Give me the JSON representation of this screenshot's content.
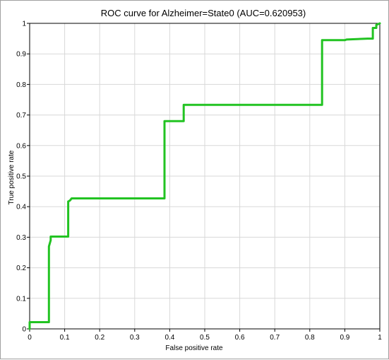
{
  "chart_data": {
    "type": "line",
    "title": "ROC curve for Alzheimer=State0 (AUC=0.620953)",
    "xlabel": "False positive rate",
    "ylabel": "True positive rate",
    "xlim": [
      0,
      1
    ],
    "ylim": [
      0,
      1
    ],
    "grid": true,
    "x_ticks": [
      "0",
      "0.1",
      "0.2",
      "0.3",
      "0.4",
      "0.5",
      "0.6",
      "0.7",
      "0.8",
      "0.9",
      "1"
    ],
    "y_ticks": [
      "0",
      "0.1",
      "0.2",
      "0.3",
      "0.4",
      "0.5",
      "0.6",
      "0.7",
      "0.8",
      "0.9",
      "1"
    ],
    "series": [
      {
        "color": "#22c322",
        "x": [
          0,
          0,
          0.055,
          0.055,
          0.06,
          0.06,
          0.11,
          0.11,
          0.115,
          0.12,
          0.385,
          0.385,
          0.44,
          0.44,
          0.835,
          0.835,
          0.9,
          0.905,
          0.965,
          0.98,
          0.98,
          0.99,
          0.99,
          1
        ],
        "y": [
          0,
          0.022,
          0.022,
          0.27,
          0.29,
          0.302,
          0.302,
          0.417,
          0.42,
          0.427,
          0.427,
          0.68,
          0.68,
          0.733,
          0.733,
          0.945,
          0.945,
          0.947,
          0.95,
          0.95,
          0.985,
          0.985,
          0.995,
          1
        ]
      }
    ]
  }
}
